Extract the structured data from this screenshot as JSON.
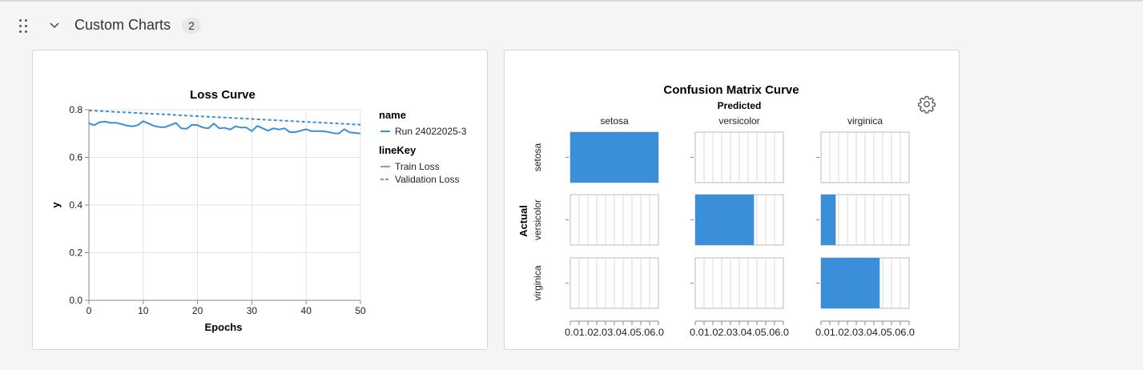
{
  "section": {
    "title": "Custom Charts",
    "count": "2"
  },
  "icons": {
    "drag": "drag-handle-icon",
    "chevron": "chevron-down-icon",
    "settings": "gear-icon"
  },
  "colors": {
    "series": "#3a8fd8",
    "cell_fill": "#3a8fd8"
  },
  "chart_data": [
    {
      "type": "line",
      "title": "Loss Curve",
      "xlabel": "Epochs",
      "ylabel": "y",
      "xlim": [
        0,
        50
      ],
      "ylim": [
        0,
        0.8
      ],
      "xticks": [
        "0",
        "10",
        "20",
        "30",
        "40",
        "50"
      ],
      "yticks": [
        "0.0",
        "0.2",
        "0.4",
        "0.6",
        "0.8"
      ],
      "grid": true,
      "legend": {
        "position": "right",
        "name_title": "name",
        "name_entries": [
          "Run 24022025-3"
        ],
        "linekey_title": "lineKey",
        "linekey_entries": [
          "Train Loss",
          "Validation Loss"
        ]
      },
      "series": [
        {
          "name": "Run 24022025-3",
          "lineKey": "Train Loss",
          "x": [
            0,
            1,
            2,
            3,
            4,
            5,
            6,
            7,
            8,
            9,
            10,
            11,
            12,
            13,
            14,
            15,
            16,
            17,
            18,
            19,
            20,
            21,
            22,
            23,
            24,
            25,
            26,
            27,
            28,
            29,
            30,
            31,
            32,
            33,
            34,
            35,
            36,
            37,
            38,
            39,
            40,
            41,
            42,
            43,
            44,
            45,
            46,
            47,
            48,
            49,
            50
          ],
          "values": [
            0.743,
            0.735,
            0.748,
            0.75,
            0.745,
            0.745,
            0.74,
            0.733,
            0.73,
            0.735,
            0.752,
            0.742,
            0.732,
            0.727,
            0.727,
            0.735,
            0.745,
            0.722,
            0.72,
            0.737,
            0.735,
            0.725,
            0.722,
            0.742,
            0.722,
            0.724,
            0.717,
            0.73,
            0.725,
            0.725,
            0.71,
            0.732,
            0.722,
            0.712,
            0.722,
            0.717,
            0.722,
            0.706,
            0.706,
            0.712,
            0.718,
            0.71,
            0.71,
            0.71,
            0.707,
            0.702,
            0.7,
            0.718,
            0.705,
            0.703,
            0.7
          ]
        },
        {
          "name": "Run 24022025-3",
          "lineKey": "Validation Loss",
          "x": [
            0,
            50
          ],
          "values": [
            0.797,
            0.737
          ]
        }
      ]
    },
    {
      "type": "heatmap",
      "title": "Confusion Matrix Curve",
      "col_title": "Predicted",
      "row_title": "Actual",
      "columns": [
        "setosa",
        "versicolor",
        "virginica"
      ],
      "rows": [
        "setosa",
        "versicolor",
        "virginica"
      ],
      "xticks": "0.01.02.03.04.05.06.0",
      "xlim": [
        0,
        6
      ],
      "values": [
        [
          6,
          0,
          0
        ],
        [
          0,
          4,
          1
        ],
        [
          0,
          0,
          4
        ]
      ]
    }
  ]
}
